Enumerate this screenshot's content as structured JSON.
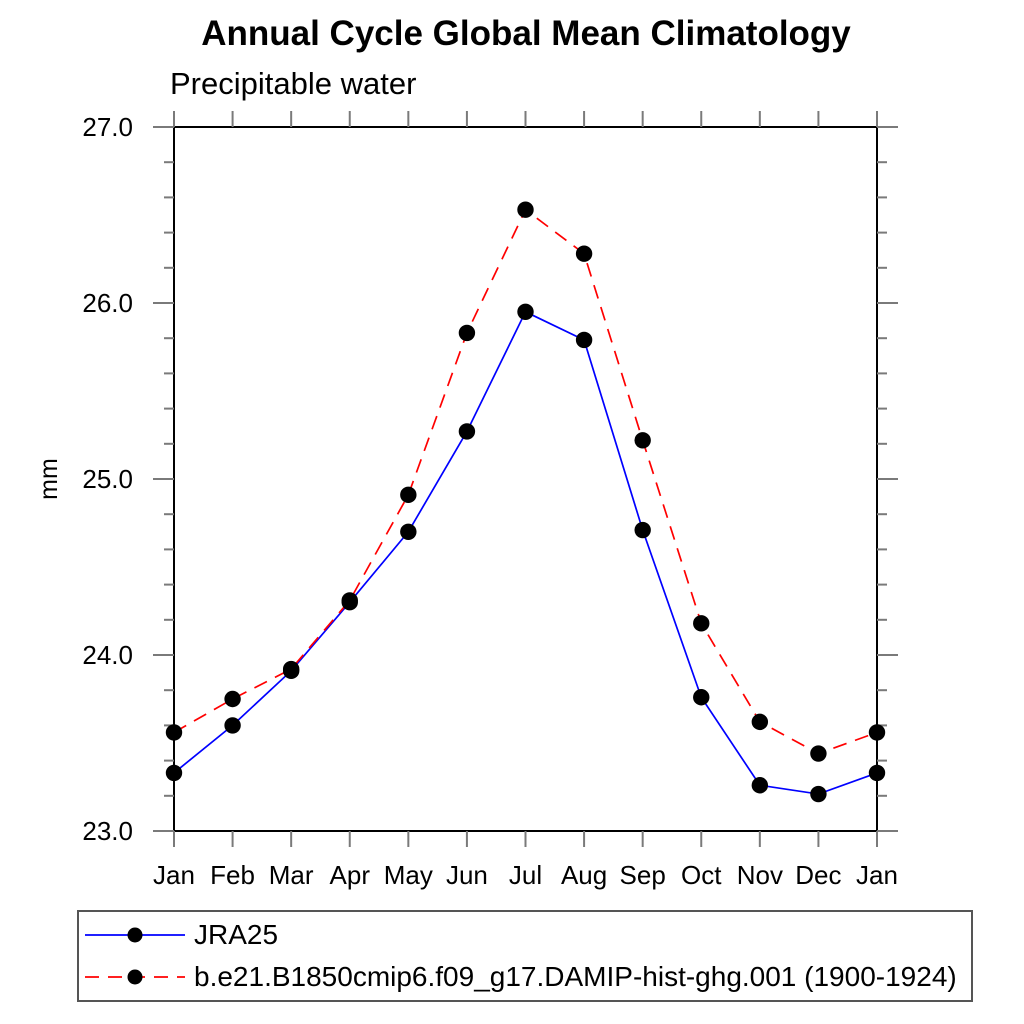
{
  "chart_data": {
    "type": "line",
    "title": "Annual Cycle Global Mean Climatology",
    "subtitle": "Precipitable water",
    "ylabel": "mm",
    "xlabel": "",
    "ylim": [
      23.0,
      27.0
    ],
    "yticks": [
      23.0,
      24.0,
      25.0,
      26.0,
      27.0
    ],
    "ytick_labels": [
      "23.0",
      "24.0",
      "25.0",
      "26.0",
      "27.0"
    ],
    "y_minor_step": 0.2,
    "grid": false,
    "legend_position": "bottom-left",
    "categories": [
      "Jan",
      "Feb",
      "Mar",
      "Apr",
      "May",
      "Jun",
      "Jul",
      "Aug",
      "Sep",
      "Oct",
      "Nov",
      "Dec",
      "Jan"
    ],
    "series": [
      {
        "name": "JRA25",
        "color": "#0000ff",
        "line_style": "solid",
        "marker": "filled-black-circle",
        "values": [
          23.33,
          23.6,
          23.91,
          24.3,
          24.7,
          25.27,
          25.95,
          25.79,
          24.71,
          23.76,
          23.26,
          23.21,
          23.33
        ]
      },
      {
        "name": "b.e21.B1850cmip6.f09_g17.DAMIP-hist-ghg.001 (1900-1924)",
        "color": "#ff0000",
        "line_style": "dashed",
        "marker": "filled-black-circle",
        "values": [
          23.56,
          23.75,
          23.92,
          24.31,
          24.91,
          25.83,
          26.53,
          26.28,
          25.22,
          24.18,
          23.62,
          23.44,
          23.56
        ]
      }
    ],
    "colors": {
      "axis": "#000000",
      "tick": "#7a7a7a",
      "marker": "#000000"
    }
  }
}
